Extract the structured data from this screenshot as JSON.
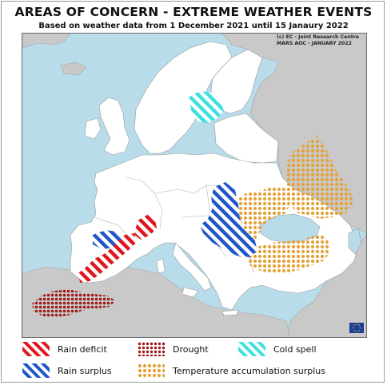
{
  "header": {
    "title": "AREAS OF CONCERN - EXTREME WEATHER EVENTS",
    "subtitle": "Based on weather data from 1 December 2021 until 15 Janaury 2022",
    "credit_line1": "(c) EC - Joint Research Centre",
    "credit_line2": "MARS AOC - JANUARY 2022"
  },
  "colors": {
    "sea": "#b9dcea",
    "land_focus": "#ffffff",
    "land_other": "#c9c9c9",
    "rain_deficit": "#e0161d",
    "drought": "#a01818",
    "cold_spell": "#3ee0e0",
    "rain_surplus": "#1f56c8",
    "temperature_accumulation_surplus": "#e3a23a"
  },
  "legend": [
    {
      "key": "rain_deficit",
      "label": "Rain deficit",
      "pattern": "hatch-red-icon"
    },
    {
      "key": "drought",
      "label": "Drought",
      "pattern": "dots-darkred-icon"
    },
    {
      "key": "cold_spell",
      "label": "Cold spell",
      "pattern": "hatch-cyan-icon"
    },
    {
      "key": "rain_surplus",
      "label": "Rain surplus",
      "pattern": "hatch-blue-icon"
    },
    {
      "key": "temperature_accumulation_surplus",
      "label": "Temperature accumulation surplus",
      "pattern": "dots-orange-icon"
    }
  ],
  "areas": [
    {
      "type": "rain_deficit",
      "region": "Iberian Peninsula east coast"
    },
    {
      "type": "rain_deficit",
      "region": "Southern France / Northwest Italy"
    },
    {
      "type": "drought",
      "region": "Morocco / Northwest Algeria"
    },
    {
      "type": "cold_spell",
      "region": "Southern Finland / Western Russia"
    },
    {
      "type": "rain_surplus",
      "region": "Northeast Spain"
    },
    {
      "type": "rain_surplus",
      "region": "Balkans / Ukraine / Romania"
    },
    {
      "type": "temperature_accumulation_surplus",
      "region": "Western Russia"
    },
    {
      "type": "temperature_accumulation_surplus",
      "region": "Ukraine / Black Sea"
    },
    {
      "type": "temperature_accumulation_surplus",
      "region": "Turkey"
    }
  ]
}
